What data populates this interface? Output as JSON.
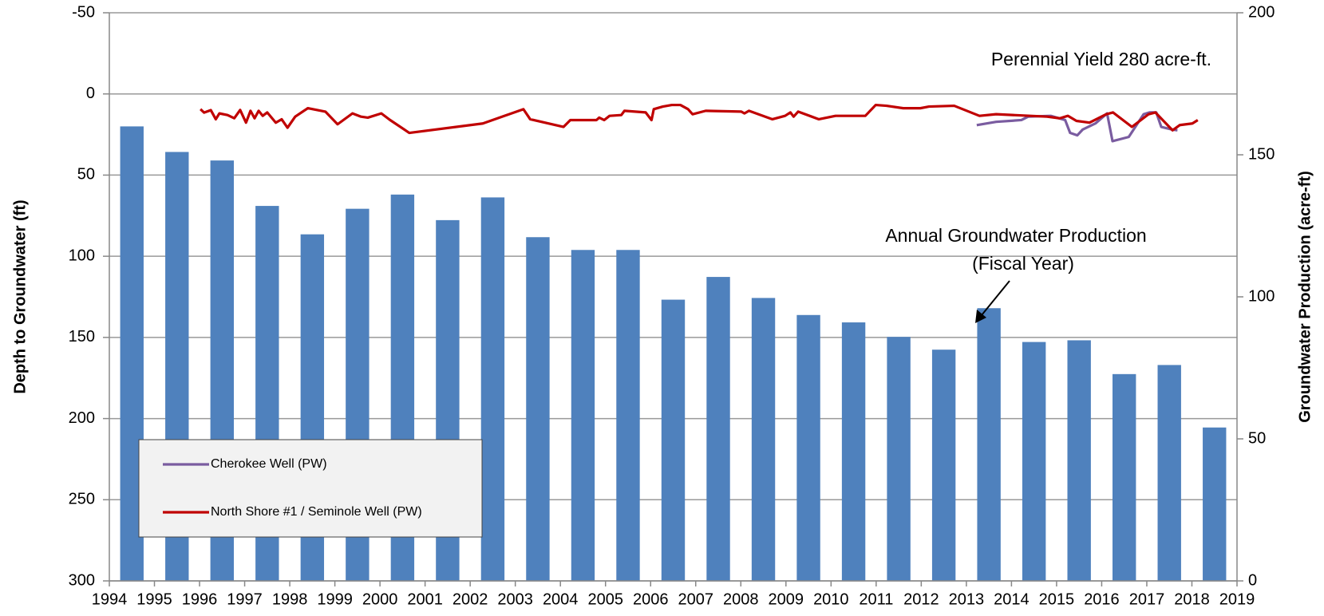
{
  "chart_data": {
    "type": "bar-line",
    "ylabel": "Depth to Groundwater (ft)",
    "y2label": "Groundwater Production (acre-ft)",
    "xlim": [
      1994,
      2019
    ],
    "xticks": [
      1994,
      1995,
      1996,
      1997,
      1998,
      1999,
      2000,
      2001,
      2002,
      2003,
      2004,
      2005,
      2006,
      2007,
      2008,
      2009,
      2010,
      2011,
      2012,
      2013,
      2014,
      2015,
      2016,
      2017,
      2018,
      2019
    ],
    "ylim": [
      -50,
      300
    ],
    "yinvert": true,
    "yticks": [
      -50,
      0,
      50,
      100,
      150,
      200,
      250,
      300
    ],
    "y2lim": [
      0,
      200
    ],
    "y2ticks": [
      0,
      50,
      100,
      150,
      200
    ],
    "grid": true,
    "legend": "lower left",
    "bars": {
      "axis": "y2",
      "color": "#4f81bd",
      "x": [
        1994,
        1995,
        1996,
        1997,
        1998,
        1999,
        2000,
        2001,
        2002,
        2003,
        2004,
        2005,
        2006,
        2007,
        2008,
        2009,
        2010,
        2011,
        2012,
        2013,
        2014,
        2015,
        2016,
        2017,
        2018
      ],
      "values": [
        160,
        151,
        148,
        132,
        122,
        131,
        136,
        127,
        135,
        121,
        116.5,
        116.5,
        99,
        107,
        99.6,
        93.6,
        91,
        85.9,
        81.4,
        96,
        84.1,
        84.7,
        72.8,
        76,
        54
      ]
    },
    "series": [
      {
        "name": "Cherokee Well (PW)",
        "color": "#7a5ca0",
        "x": [
          2013.23,
          2013.66,
          2014.22,
          2014.37,
          2014.87,
          2015.19,
          2015.3,
          2015.46,
          2015.58,
          2015.86,
          2016.12,
          2016.24,
          2016.6,
          2016.93,
          2017.06,
          2017.21,
          2017.32,
          2017.56,
          2017.68
        ],
        "values": [
          19.2,
          17.2,
          16.1,
          14,
          13.5,
          16.1,
          24,
          25.5,
          21.9,
          18.2,
          12,
          29.1,
          26.5,
          12.5,
          11.4,
          11.4,
          20.3,
          21.9,
          22.4
        ]
      },
      {
        "name": "North Shore #1 / Seminole Well (PW)",
        "color": "#c00000",
        "x": [
          1996.02,
          1996.1,
          1996.25,
          1996.36,
          1996.44,
          1996.62,
          1996.77,
          1996.9,
          1997.03,
          1997.13,
          1997.22,
          1997.31,
          1997.4,
          1997.5,
          1997.69,
          1997.82,
          1997.95,
          1998.12,
          1998.4,
          1998.79,
          1999.06,
          1999.39,
          1999.58,
          1999.73,
          2000.03,
          2000.22,
          2000.65,
          2002.28,
          2003.18,
          2003.33,
          2004.07,
          2004.22,
          2004.8,
          2004.86,
          2004.97,
          2005.09,
          2005.35,
          2005.42,
          2005.89,
          2006.02,
          2006.07,
          2006.27,
          2006.47,
          2006.66,
          2006.83,
          2006.93,
          2007.22,
          2008.01,
          2008.08,
          2008.18,
          2008.7,
          2008.98,
          2009.1,
          2009.17,
          2009.27,
          2009.73,
          2010.1,
          2010.76,
          2010.99,
          2011.23,
          2011.6,
          2011.98,
          2012.17,
          2012.73,
          2013.29,
          2013.66,
          2014.79,
          2015.07,
          2015.25,
          2015.44,
          2015.73,
          2016.1,
          2016.25,
          2016.67,
          2017.04,
          2017.19,
          2017.57,
          2017.73,
          2018.01,
          2018.13
        ],
        "values": [
          9.4,
          11.5,
          10,
          15.6,
          12,
          13,
          15,
          9.9,
          17.7,
          10.4,
          15,
          10.4,
          13.5,
          11.4,
          17.7,
          15.6,
          20.8,
          14,
          8.8,
          10.9,
          18.7,
          12,
          14,
          14.6,
          12,
          16,
          24,
          18.2,
          9.4,
          15.6,
          20.3,
          16.1,
          16.1,
          14.6,
          16.1,
          13.5,
          13,
          10.4,
          11.4,
          16.1,
          9.4,
          7.8,
          6.8,
          6.8,
          9.4,
          12.5,
          10.4,
          10.9,
          12,
          10.4,
          15.6,
          13.5,
          11.4,
          14,
          10.9,
          15.6,
          13.5,
          13.5,
          6.8,
          7.3,
          8.8,
          8.8,
          7.8,
          7.3,
          13.5,
          12.5,
          14,
          15,
          13.5,
          16.6,
          17.7,
          12.5,
          11.4,
          20.3,
          12.5,
          11.4,
          22.4,
          19.2,
          18.2,
          16.1
        ]
      }
    ],
    "annotations": [
      {
        "text": [
          "Perennial Yield 280 acre-ft."
        ]
      },
      {
        "text": [
          "Annual Groundwater Production",
          "(Fiscal Year)"
        ]
      }
    ]
  }
}
